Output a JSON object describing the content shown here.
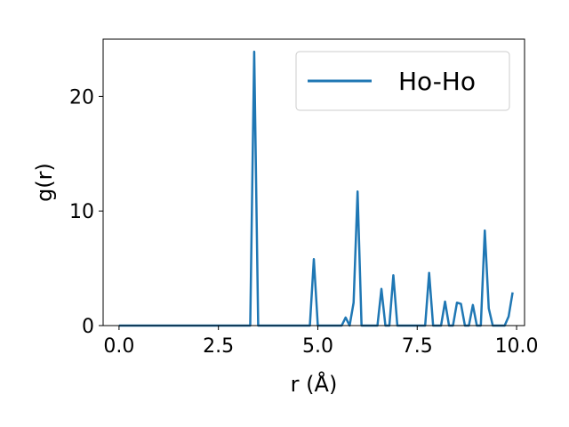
{
  "chart_data": {
    "type": "line",
    "title": "",
    "xlabel": "r (Å)",
    "ylabel": "g(r)",
    "xlim": [
      -0.4,
      10.2
    ],
    "ylim": [
      0,
      25
    ],
    "xticks": [
      0.0,
      2.5,
      5.0,
      7.5,
      10.0
    ],
    "xtick_labels": [
      "0.0",
      "2.5",
      "5.0",
      "7.5",
      "10.0"
    ],
    "yticks": [
      0,
      10,
      20
    ],
    "ytick_labels": [
      "0",
      "10",
      "20"
    ],
    "grid": false,
    "legend_position": "top-right",
    "series": [
      {
        "name": "Ho-Ho",
        "color": "#1f77b4",
        "x": [
          0.0,
          3.3,
          3.4,
          3.5,
          4.7,
          4.8,
          4.9,
          5.0,
          5.5,
          5.6,
          5.7,
          5.8,
          5.9,
          6.0,
          6.1,
          6.4,
          6.5,
          6.6,
          6.7,
          6.8,
          6.9,
          7.0,
          7.6,
          7.7,
          7.8,
          7.9,
          8.0,
          8.1,
          8.2,
          8.3,
          8.4,
          8.5,
          8.6,
          8.7,
          8.8,
          8.9,
          9.0,
          9.1,
          9.2,
          9.3,
          9.4,
          9.7,
          9.8,
          9.9
        ],
        "y": [
          0,
          0,
          23.9,
          0,
          0,
          0,
          5.8,
          0,
          0,
          0,
          0.7,
          0,
          2.0,
          11.7,
          0,
          0,
          0,
          3.2,
          0,
          0,
          4.4,
          0,
          0,
          0,
          4.6,
          0,
          0,
          0,
          2.1,
          0,
          0,
          2.0,
          1.9,
          0,
          0,
          1.8,
          0,
          0,
          8.3,
          1.5,
          0,
          0,
          0.8,
          2.9
        ]
      }
    ]
  }
}
